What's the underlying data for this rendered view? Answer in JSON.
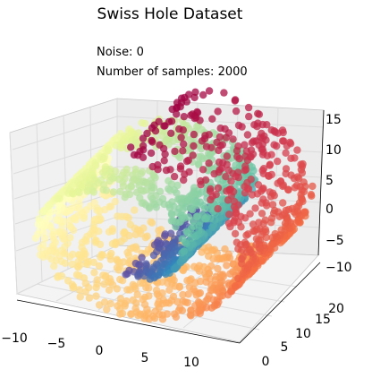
{
  "title": "Swiss Hole Dataset",
  "annotations": {
    "noise": "Noise: 0",
    "samples": "Number of samples: 2000"
  },
  "chart_data": {
    "type": "scatter",
    "projection": "3d",
    "title": "Swiss Hole Dataset",
    "n_samples": 2000,
    "noise": 0,
    "colormap": "Spectral",
    "x_ticks": [
      "−10",
      "−5",
      "0",
      "5",
      "10"
    ],
    "y_ticks": [
      "0",
      "5",
      "10",
      "15",
      "20"
    ],
    "z_ticks": [
      "−10",
      "−5",
      "0",
      "5",
      "10",
      "15"
    ],
    "xlim": [
      -11,
      13
    ],
    "ylim": [
      -1,
      22
    ],
    "zlim": [
      -12,
      15
    ],
    "grid": true,
    "pane_color": "#f2f2f2",
    "grid_color": "#dedede"
  }
}
